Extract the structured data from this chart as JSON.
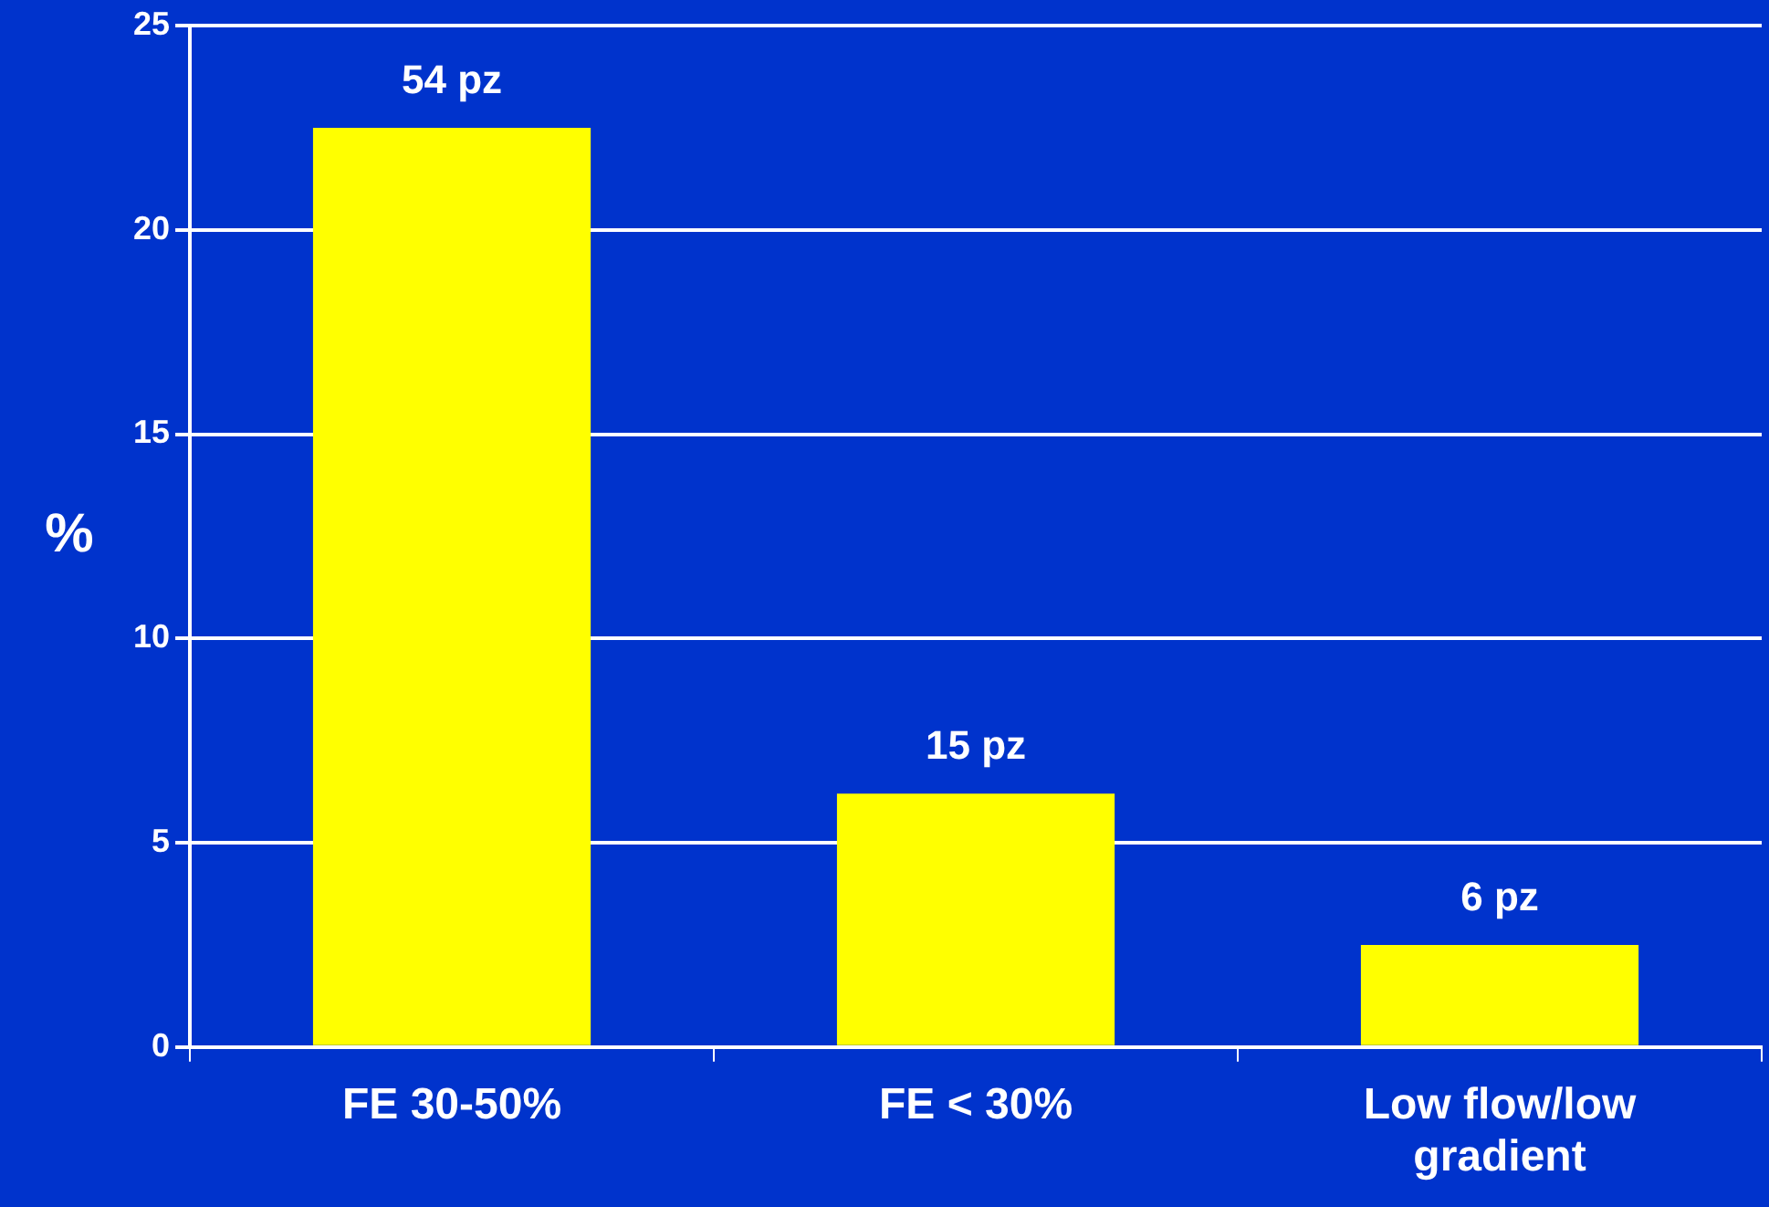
{
  "chart_data": {
    "type": "bar",
    "ylabel": "%",
    "categories": [
      "FE 30-50%",
      "FE < 30%",
      "Low flow/low gradient"
    ],
    "series": [
      {
        "color": "#ffff00",
        "values": [
          22.5,
          6.2,
          2.5
        ]
      }
    ],
    "annotations": [
      {
        "text": "54 pz",
        "x": "FE 30-50%",
        "y": 22.5
      },
      {
        "text": "15 pz",
        "x": "FE < 30%",
        "y": 6.2
      },
      {
        "text": "6 pz",
        "x": "Low flow/low gradient",
        "y": 2.5
      }
    ],
    "ylim": [
      0,
      25
    ],
    "yticks": [
      0,
      5,
      10,
      15,
      20,
      25
    ],
    "grid": "y",
    "legend": false
  }
}
